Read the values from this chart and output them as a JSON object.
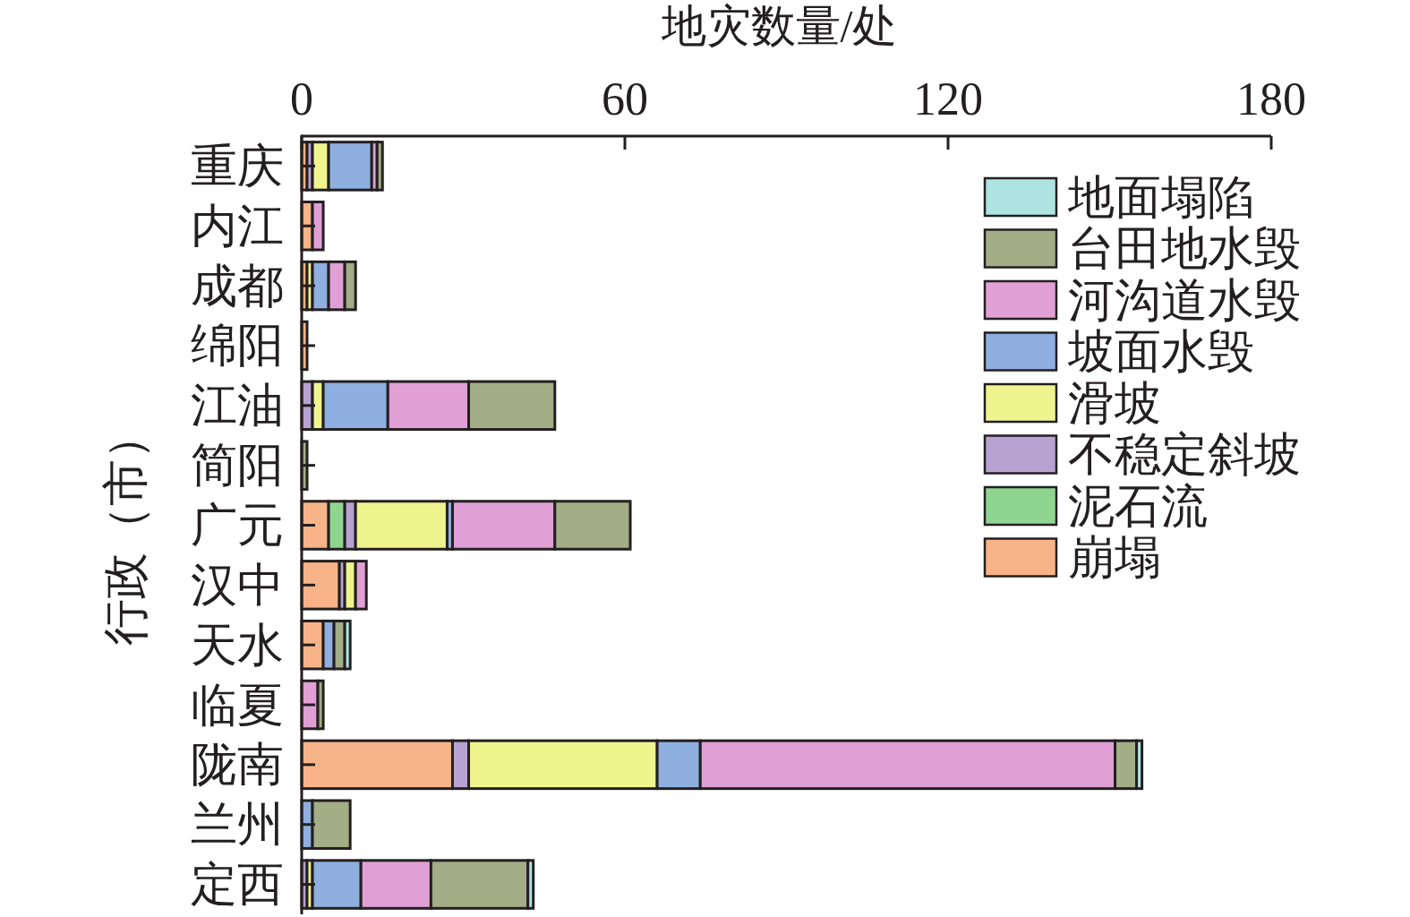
{
  "chart_data": {
    "type": "bar",
    "orientation": "horizontal",
    "stacked": true,
    "xlabel": "地灾数量/处",
    "ylabel": "行政（市）",
    "categories": [
      "重庆",
      "内江",
      "成都",
      "绵阳",
      "江油",
      "简阳",
      "广元",
      "汉中",
      "天水",
      "临夏",
      "陇南",
      "兰州",
      "定西"
    ],
    "xlim": [
      0,
      180
    ],
    "xticks": [
      0,
      60,
      120,
      180
    ],
    "legend": "top right",
    "series": [
      {
        "name": "崩塌",
        "color": "#f7b488",
        "values": [
          1,
          2,
          1,
          1,
          0,
          0,
          5,
          7,
          4,
          0,
          28,
          0,
          0
        ]
      },
      {
        "name": "泥石流",
        "color": "#8fd58f",
        "values": [
          0,
          0,
          0,
          0,
          0,
          0,
          3,
          0,
          0,
          0,
          0,
          0,
          0
        ]
      },
      {
        "name": "不稳定斜坡",
        "color": "#b8a2d2",
        "values": [
          1,
          0,
          0,
          0,
          2,
          0,
          2,
          1,
          0,
          0,
          3,
          0,
          1
        ]
      },
      {
        "name": "滑坡",
        "color": "#eff48f",
        "values": [
          3,
          0,
          1,
          0,
          2,
          0,
          17,
          2,
          0,
          0,
          35,
          0,
          1
        ]
      },
      {
        "name": "坡面水毁",
        "color": "#8fafe0",
        "values": [
          8,
          0,
          3,
          0,
          12,
          0,
          1,
          0,
          2,
          0,
          8,
          2,
          9
        ]
      },
      {
        "name": "河沟道水毁",
        "color": "#e0a0d5",
        "values": [
          1,
          2,
          3,
          0,
          15,
          0,
          19,
          2,
          0,
          3,
          77,
          0,
          13
        ]
      },
      {
        "name": "台田地水毁",
        "color": "#a3ad86",
        "values": [
          1,
          0,
          2,
          0,
          16,
          1,
          14,
          0,
          2,
          1,
          4,
          7,
          18
        ]
      },
      {
        "name": "地面塌陷",
        "color": "#ade3e1",
        "values": [
          0,
          0,
          0,
          0,
          0,
          0,
          0,
          0,
          1,
          0,
          1,
          0,
          1
        ]
      }
    ]
  }
}
